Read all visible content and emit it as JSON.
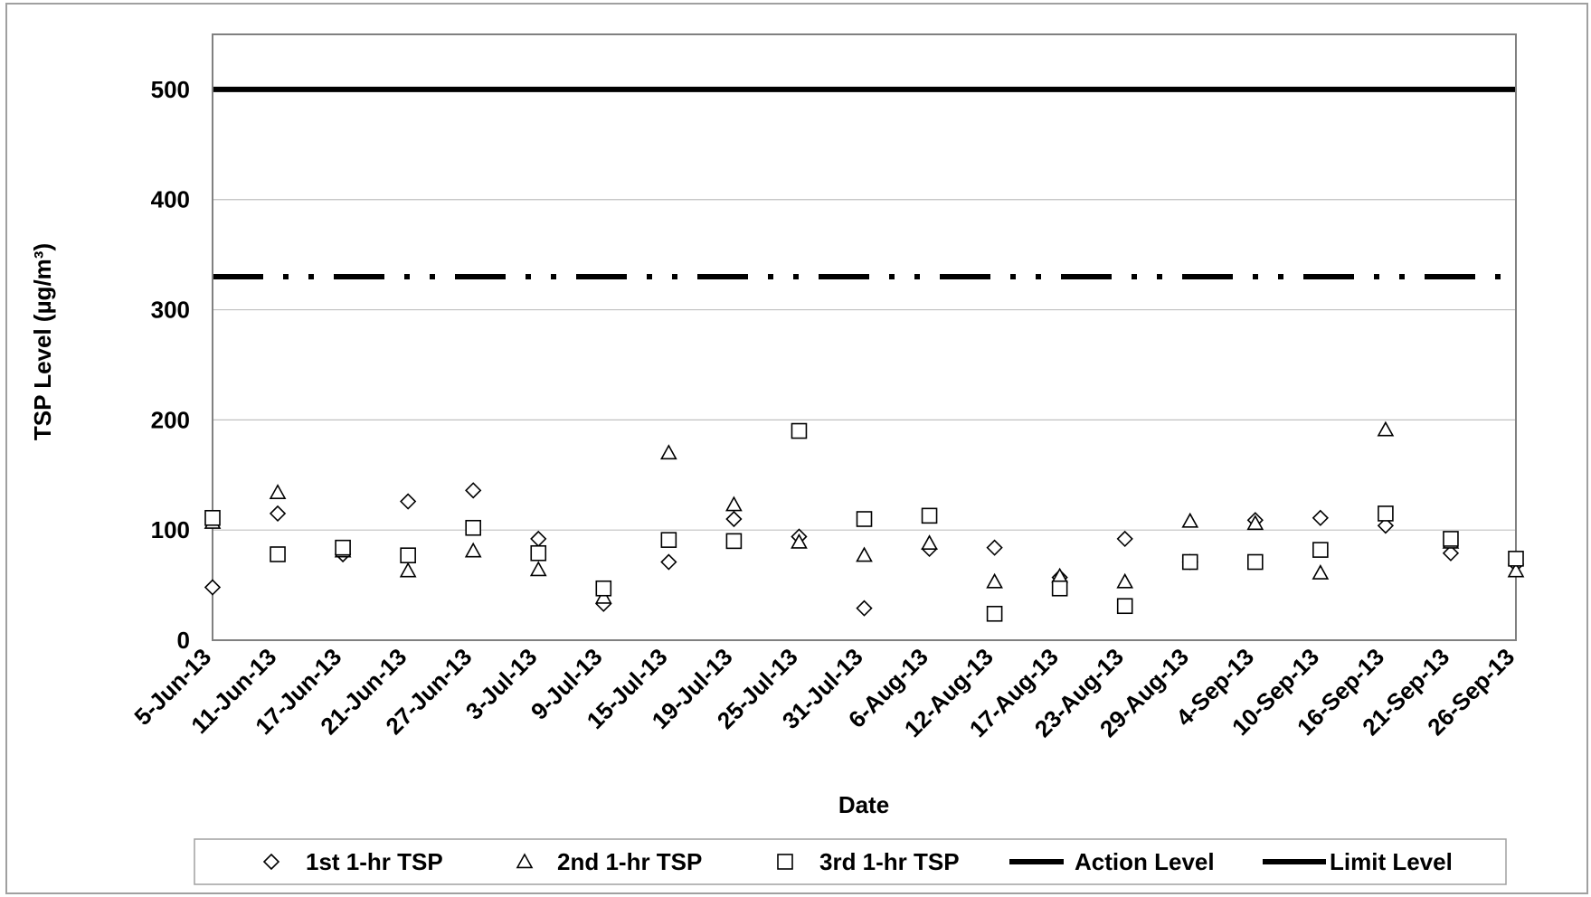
{
  "chart_data": {
    "type": "scatter",
    "title": "",
    "xlabel": "Date",
    "ylabel": "TSP Level  (µg/m³)",
    "ylim": [
      0,
      550
    ],
    "yticks": [
      0,
      100,
      200,
      300,
      400,
      500
    ],
    "grid": "horizontal",
    "legend_position": "bottom",
    "categories": [
      "5-Jun-13",
      "11-Jun-13",
      "17-Jun-13",
      "21-Jun-13",
      "27-Jun-13",
      "3-Jul-13",
      "9-Jul-13",
      "15-Jul-13",
      "19-Jul-13",
      "25-Jul-13",
      "31-Jul-13",
      "6-Aug-13",
      "12-Aug-13",
      "17-Aug-13",
      "23-Aug-13",
      "29-Aug-13",
      "4-Sep-13",
      "10-Sep-13",
      "16-Sep-13",
      "21-Sep-13",
      "26-Sep-13"
    ],
    "series": [
      {
        "name": "1st 1-hr TSP",
        "marker": "diamond",
        "values": [
          48,
          115,
          78,
          126,
          136,
          92,
          33,
          71,
          110,
          94,
          29,
          83,
          84,
          57,
          92,
          71,
          109,
          111,
          104,
          79,
          69
        ]
      },
      {
        "name": "2nd 1-hr TSP",
        "marker": "triangle",
        "values": [
          107,
          134,
          81,
          63,
          81,
          64,
          39,
          170,
          123,
          89,
          77,
          88,
          53,
          58,
          53,
          108,
          106,
          61,
          191,
          89,
          63
        ]
      },
      {
        "name": "3rd 1-hr TSP",
        "marker": "square",
        "values": [
          111,
          78,
          84,
          77,
          102,
          79,
          47,
          91,
          90,
          190,
          110,
          113,
          24,
          47,
          31,
          71,
          71,
          82,
          115,
          92,
          74
        ]
      }
    ],
    "reference_lines": [
      {
        "name": "Action Level",
        "value": 330,
        "style": "dash-dot-dot"
      },
      {
        "name": "Limit Level",
        "value": 500,
        "style": "solid"
      }
    ]
  }
}
